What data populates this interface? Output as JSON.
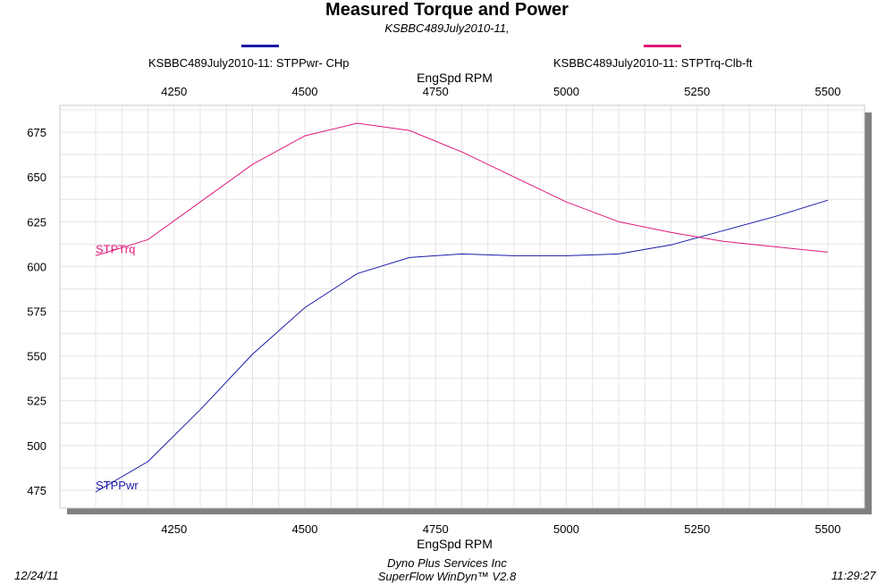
{
  "chart_data": {
    "type": "line",
    "title": "Measured Torque and Power",
    "subtitle": "KSBBC489July2010-11,",
    "xlabel": "EngSpd  RPM",
    "x_ticks": [
      4250,
      4500,
      4750,
      5000,
      5250,
      5500
    ],
    "xlim": [
      4100,
      5500
    ],
    "y_ticks": [
      475,
      500,
      525,
      550,
      575,
      600,
      625,
      650,
      675
    ],
    "ylim": [
      465,
      690
    ],
    "grid": true,
    "legend_position": "top",
    "series": [
      {
        "name": "KSBBC489July2010-11: STPPwr- CHp",
        "label": "STPPwr",
        "color": "#1a1aa8",
        "x": [
          4100,
          4200,
          4300,
          4400,
          4500,
          4600,
          4700,
          4800,
          4900,
          5000,
          5100,
          5200,
          5300,
          5400,
          5500
        ],
        "y": [
          474,
          491,
          520,
          551,
          577,
          596,
          605,
          607,
          606,
          606,
          607,
          612,
          620,
          628,
          637
        ]
      },
      {
        "name": "KSBBC489July2010-11: STPTrq-Clb-ft",
        "label": "STPTrq",
        "color": "#e0187a",
        "x": [
          4100,
          4200,
          4300,
          4400,
          4500,
          4600,
          4700,
          4800,
          4900,
          5000,
          5100,
          5200,
          5300,
          5400,
          5500
        ],
        "y": [
          606,
          615,
          636,
          657,
          673,
          680,
          676,
          664,
          650,
          636,
          625,
          619,
          614,
          611,
          608
        ]
      }
    ]
  },
  "footer": {
    "date": "12/24/11",
    "company": "Dyno Plus Services Inc",
    "software": "SuperFlow WinDyn™ V2.8",
    "time": "11:29:27"
  }
}
